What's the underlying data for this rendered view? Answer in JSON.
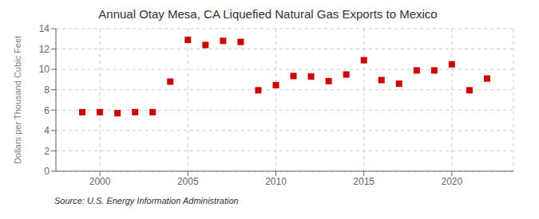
{
  "chart_data": {
    "type": "scatter",
    "title": "Annual Otay Mesa, CA Liquefied Natural Gas Exports to Mexico",
    "ylabel": "Dollars per Thousand Cubic Feet",
    "annotations": [
      "Source: U.S. Energy Information Administration"
    ],
    "x": [
      1999,
      2000,
      2001,
      2002,
      2003,
      2004,
      2005,
      2006,
      2007,
      2008,
      2009,
      2010,
      2011,
      2012,
      2013,
      2014,
      2015,
      2016,
      2017,
      2018,
      2019,
      2020,
      2021,
      2022
    ],
    "values": [
      5.8,
      5.8,
      5.7,
      5.8,
      5.8,
      8.8,
      12.9,
      12.4,
      12.8,
      12.7,
      7.95,
      8.45,
      9.35,
      9.3,
      8.85,
      9.5,
      10.9,
      8.95,
      8.6,
      9.9,
      9.9,
      10.5,
      7.95,
      9.1
    ],
    "color": "#cc0000",
    "marker": "square",
    "xlim": [
      1997.5,
      2023.5
    ],
    "xticks": [
      2000,
      2005,
      2010,
      2015,
      2020
    ],
    "ylim": [
      0,
      14
    ],
    "yticks": [
      0,
      2,
      4,
      6,
      8,
      10,
      12,
      14
    ],
    "grid": true
  }
}
